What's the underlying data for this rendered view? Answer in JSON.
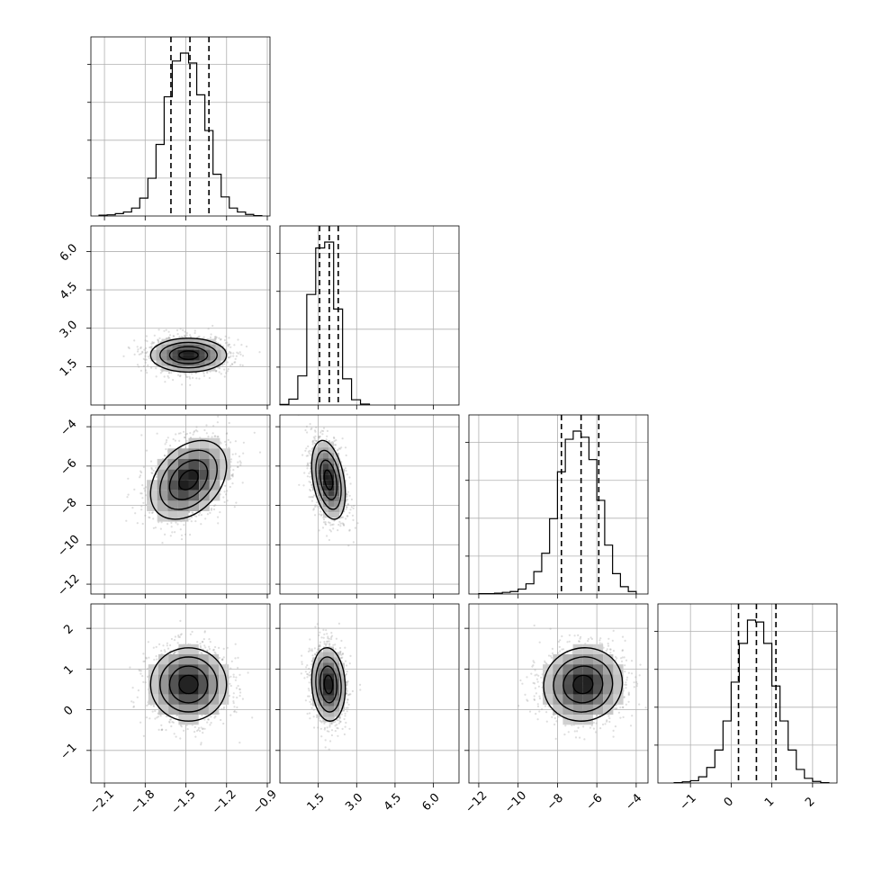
{
  "chart_data": {
    "type": "corner",
    "grid": true,
    "parameters": [
      {
        "range": [
          -2.2,
          -0.88
        ],
        "ticks": [
          -2.1,
          -1.8,
          -1.5,
          -1.2,
          -0.9
        ],
        "tick_labels": [
          "−2.1",
          "−1.8",
          "−1.5",
          "−1.2",
          "−0.9"
        ],
        "mean": -1.47,
        "sd": 0.14,
        "quantiles": [
          -1.61,
          -1.47,
          -1.33
        ],
        "hist_bins": [
          -2.14,
          -2.08,
          -2.02,
          -1.96,
          -1.9,
          -1.84,
          -1.78,
          -1.72,
          -1.66,
          -1.6,
          -1.54,
          -1.48,
          -1.42,
          -1.36,
          -1.3,
          -1.24,
          -1.18,
          -1.12,
          -1.06,
          -1.0,
          -0.94
        ],
        "hist_counts": [
          2,
          3,
          6,
          10,
          20,
          45,
          95,
          180,
          300,
          390,
          410,
          385,
          305,
          215,
          105,
          48,
          20,
          10,
          4,
          1
        ]
      },
      {
        "range": [
          0.0,
          7.0
        ],
        "ticks": [
          1.5,
          3.0,
          4.5,
          6.0
        ],
        "tick_labels": [
          "1.5",
          "3.0",
          "4.5",
          "6.0"
        ],
        "mean": 1.9,
        "sd": 0.33,
        "quantiles": [
          1.55,
          1.93,
          2.28
        ],
        "hist_bins": [
          0.0,
          0.35,
          0.7,
          1.05,
          1.4,
          1.75,
          2.1,
          2.45,
          2.8,
          3.15,
          3.5
        ],
        "hist_counts": [
          2,
          20,
          100,
          380,
          540,
          560,
          330,
          90,
          18,
          3
        ]
      },
      {
        "range": [
          -12.5,
          -3.4
        ],
        "ticks": [
          -12,
          -10,
          -8,
          -6,
          -4
        ],
        "tick_labels": [
          "−12",
          "−10",
          "−8",
          "−6",
          "−4"
        ],
        "mean": -6.8,
        "sd": 1.0,
        "quantiles": [
          -7.8,
          -6.8,
          -5.9
        ],
        "hist_bins": [
          -12.0,
          -11.6,
          -11.2,
          -10.8,
          -10.4,
          -10.0,
          -9.6,
          -9.2,
          -8.8,
          -8.4,
          -8.0,
          -7.6,
          -7.2,
          -6.8,
          -6.4,
          -6.0,
          -5.6,
          -5.2,
          -4.8,
          -4.4,
          -4.0
        ],
        "hist_counts": [
          1,
          1,
          2,
          4,
          6,
          12,
          25,
          55,
          100,
          185,
          300,
          380,
          400,
          385,
          330,
          230,
          120,
          50,
          18,
          6
        ]
      },
      {
        "range": [
          -1.8,
          2.6
        ],
        "ticks": [
          -1,
          0,
          1,
          2
        ],
        "tick_labels": [
          "−1",
          "0",
          "1",
          "2"
        ],
        "mean": 0.62,
        "sd": 0.45,
        "quantiles": [
          0.18,
          0.62,
          1.1
        ],
        "hist_bins": [
          -1.4,
          -1.2,
          -1.0,
          -0.8,
          -0.6,
          -0.4,
          -0.2,
          0.0,
          0.2,
          0.4,
          0.6,
          0.8,
          1.0,
          1.2,
          1.4,
          1.6,
          1.8,
          2.0,
          2.2,
          2.4
        ],
        "hist_counts": [
          1,
          3,
          6,
          16,
          40,
          85,
          160,
          260,
          360,
          420,
          415,
          360,
          250,
          160,
          85,
          35,
          12,
          4,
          1
        ]
      }
    ],
    "pairs": [
      {
        "x": 0,
        "y": 1,
        "corr": 0.0,
        "x_center": -1.48,
        "y_center": 1.95
      },
      {
        "x": 0,
        "y": 2,
        "corr": 0.35,
        "x_center": -1.48,
        "y_center": -6.7
      },
      {
        "x": 1,
        "y": 2,
        "corr": -0.35,
        "x_center": 1.9,
        "y_center": -6.7
      },
      {
        "x": 0,
        "y": 3,
        "corr": 0.0,
        "x_center": -1.48,
        "y_center": 0.62
      },
      {
        "x": 1,
        "y": 3,
        "corr": -0.1,
        "x_center": 1.9,
        "y_center": 0.62
      },
      {
        "x": 2,
        "y": 3,
        "corr": 0.05,
        "x_center": -6.7,
        "y_center": 0.62
      }
    ]
  }
}
